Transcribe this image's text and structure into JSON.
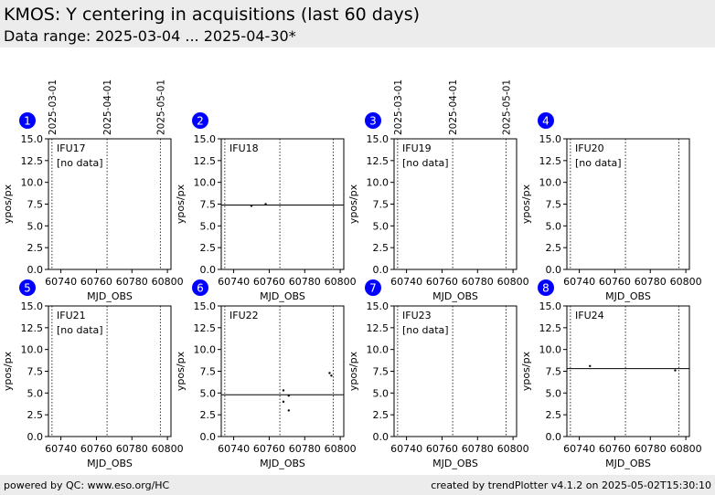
{
  "header": {
    "title": "KMOS: Y centering in acquisitions (last 60 days)",
    "subtitle": "Data range: 2025-03-04 ... 2025-04-30*"
  },
  "footer": {
    "left": "powered by QC: www.eso.org/HC",
    "right": "created by trendPlotter v4.1.2 on 2025-05-02T15:30:10"
  },
  "colors": {
    "badge": "#0000ff",
    "band_bg": "#ececec"
  },
  "date_markers": [
    {
      "label": "2025-03-01",
      "mjd": 60735
    },
    {
      "label": "2025-04-01",
      "mjd": 60766
    },
    {
      "label": "2025-05-01",
      "mjd": 60796
    }
  ],
  "chart_data": [
    {
      "type": "scatter",
      "panel": "1",
      "ifu_label": "IFU17",
      "status": "[no data]",
      "xlabel": "MJD_OBS",
      "ylabel": "ypos/px",
      "xlim": [
        60733,
        60802
      ],
      "ylim": [
        0,
        15
      ],
      "xticks": [
        "60740",
        "60760",
        "60780",
        "60800"
      ],
      "yticks": [
        "0.0",
        "2.5",
        "5.0",
        "7.5",
        "10.0",
        "12.5",
        "15.0"
      ],
      "points": [],
      "reference_y": null
    },
    {
      "type": "scatter",
      "panel": "2",
      "ifu_label": "IFU18",
      "status": "",
      "xlabel": "MJD_OBS",
      "ylabel": "ypos/px",
      "xlim": [
        60733,
        60802
      ],
      "ylim": [
        0,
        15
      ],
      "xticks": [
        "60740",
        "60760",
        "60780",
        "60800"
      ],
      "yticks": [
        "0.0",
        "2.5",
        "5.0",
        "7.5",
        "10.0",
        "12.5",
        "15.0"
      ],
      "points": [
        [
          60750,
          7.3
        ],
        [
          60758,
          7.5
        ]
      ],
      "reference_y": 7.4
    },
    {
      "type": "scatter",
      "panel": "3",
      "ifu_label": "IFU19",
      "status": "[no data]",
      "xlabel": "MJD_OBS",
      "ylabel": "ypos/px",
      "xlim": [
        60733,
        60802
      ],
      "ylim": [
        0,
        15
      ],
      "xticks": [
        "60740",
        "60760",
        "60780",
        "60800"
      ],
      "yticks": [
        "0.0",
        "2.5",
        "5.0",
        "7.5",
        "10.0",
        "12.5",
        "15.0"
      ],
      "points": [],
      "reference_y": null
    },
    {
      "type": "scatter",
      "panel": "4",
      "ifu_label": "IFU20",
      "status": "[no data]",
      "xlabel": "MJD_OBS",
      "ylabel": "ypos/px",
      "xlim": [
        60733,
        60802
      ],
      "ylim": [
        0,
        15
      ],
      "xticks": [
        "60740",
        "60760",
        "60780",
        "60800"
      ],
      "yticks": [
        "0.0",
        "2.5",
        "5.0",
        "7.5",
        "10.0",
        "12.5",
        "15.0"
      ],
      "points": [],
      "reference_y": null
    },
    {
      "type": "scatter",
      "panel": "5",
      "ifu_label": "IFU21",
      "status": "[no data]",
      "xlabel": "MJD_OBS",
      "ylabel": "ypos/px",
      "xlim": [
        60733,
        60802
      ],
      "ylim": [
        0,
        15
      ],
      "xticks": [
        "60740",
        "60760",
        "60780",
        "60800"
      ],
      "yticks": [
        "0.0",
        "2.5",
        "5.0",
        "7.5",
        "10.0",
        "12.5",
        "15.0"
      ],
      "points": [],
      "reference_y": null
    },
    {
      "type": "scatter",
      "panel": "6",
      "ifu_label": "IFU22",
      "status": "",
      "xlabel": "MJD_OBS",
      "ylabel": "ypos/px",
      "xlim": [
        60733,
        60802
      ],
      "ylim": [
        0,
        15
      ],
      "xticks": [
        "60740",
        "60760",
        "60780",
        "60800"
      ],
      "yticks": [
        "0.0",
        "2.5",
        "5.0",
        "7.5",
        "10.0",
        "12.5",
        "15.0"
      ],
      "points": [
        [
          60768,
          5.3
        ],
        [
          60768,
          4.0
        ],
        [
          60771,
          4.7
        ],
        [
          60771,
          3.0
        ],
        [
          60794,
          7.3
        ],
        [
          60795,
          7.0
        ]
      ],
      "reference_y": 4.8
    },
    {
      "type": "scatter",
      "panel": "7",
      "ifu_label": "IFU23",
      "status": "[no data]",
      "xlabel": "MJD_OBS",
      "ylabel": "ypos/px",
      "xlim": [
        60733,
        60802
      ],
      "ylim": [
        0,
        15
      ],
      "xticks": [
        "60740",
        "60760",
        "60780",
        "60800"
      ],
      "yticks": [
        "0.0",
        "2.5",
        "5.0",
        "7.5",
        "10.0",
        "12.5",
        "15.0"
      ],
      "points": [],
      "reference_y": null
    },
    {
      "type": "scatter",
      "panel": "8",
      "ifu_label": "IFU24",
      "status": "",
      "xlabel": "MJD_OBS",
      "ylabel": "ypos/px",
      "xlim": [
        60733,
        60802
      ],
      "ylim": [
        0,
        15
      ],
      "xticks": [
        "60740",
        "60760",
        "60780",
        "60800"
      ],
      "yticks": [
        "0.0",
        "2.5",
        "5.0",
        "7.5",
        "10.0",
        "12.5",
        "15.0"
      ],
      "points": [
        [
          60746,
          8.1
        ],
        [
          60794,
          7.6
        ]
      ],
      "reference_y": 7.8
    }
  ]
}
